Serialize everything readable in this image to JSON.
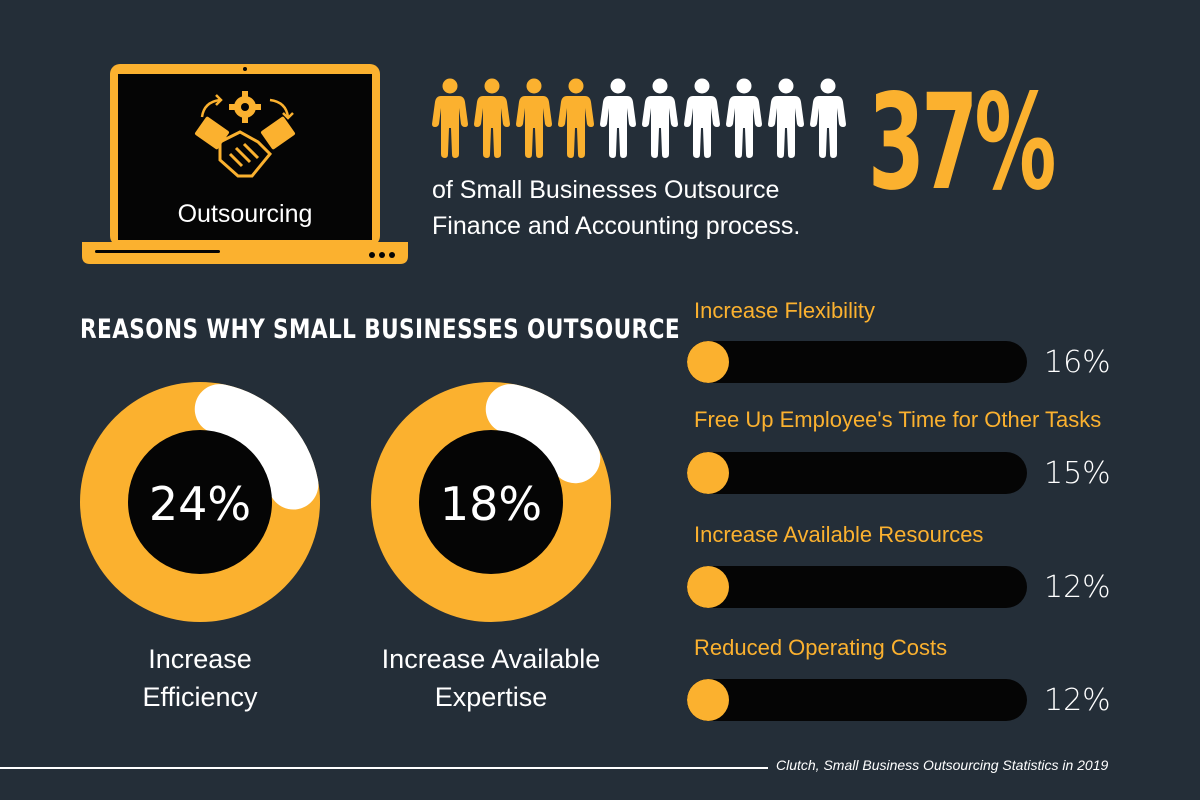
{
  "header": {
    "laptop_label": "Outsourcing",
    "big_percent": "37%",
    "description_line1": "of Small Businesses Outsource",
    "description_line2": "Finance and Accounting process."
  },
  "people_chart": {
    "total": 10,
    "highlighted": 4,
    "highlight_color": "#fbb12f",
    "base_color": "#ffffff"
  },
  "section_title": "REASONS WHY SMALL BUSINESSES OUTSOURCE",
  "donuts": [
    {
      "value_text": "24%",
      "label_line1": "Increase",
      "label_line2": "Efficiency",
      "value": 24
    },
    {
      "value_text": "18%",
      "label_line1": "Increase Available",
      "label_line2": "Expertise",
      "value": 18
    }
  ],
  "bars": [
    {
      "label": "Increase Flexibility",
      "value_text": "16%",
      "value": 16
    },
    {
      "label": "Free Up Employee's Time for Other Tasks",
      "value_text": "15%",
      "value": 15
    },
    {
      "label": "Increase Available Resources",
      "value_text": "12%",
      "value": 12
    },
    {
      "label": "Reduced Operating Costs",
      "value_text": "12%",
      "value": 12
    }
  ],
  "source": "Clutch, Small Business Outsourcing Statistics in 2019",
  "colors": {
    "background": "#242e38",
    "accent": "#fbb12f",
    "dark": "#050505",
    "text": "#ffffff"
  },
  "chart_data": [
    {
      "type": "pie",
      "categories": [
        "Increase Efficiency"
      ],
      "values": [
        24
      ]
    },
    {
      "type": "pie",
      "categories": [
        "Increase Available Expertise"
      ],
      "values": [
        18
      ]
    },
    {
      "type": "bar",
      "categories": [
        "Increase Flexibility",
        "Free Up Employee's Time for Other Tasks",
        "Increase Available Resources",
        "Reduced Operating Costs"
      ],
      "values": [
        16,
        15,
        12,
        12
      ]
    }
  ]
}
